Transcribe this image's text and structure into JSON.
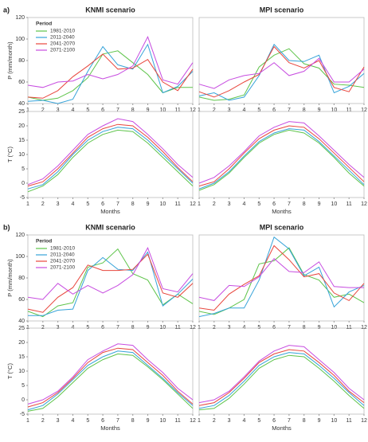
{
  "chart_data": [
    {
      "type": "line",
      "panel": "a)",
      "title": "KNMI scenario",
      "ylabel": "P (mm/month)",
      "x": [
        1,
        2,
        3,
        4,
        5,
        6,
        7,
        8,
        9,
        10,
        11,
        12
      ],
      "xlim": [
        1,
        12
      ],
      "xticks": [
        1,
        2,
        3,
        4,
        5,
        6,
        7,
        8,
        9,
        10,
        11,
        12
      ],
      "ylim": [
        40,
        120
      ],
      "yticks": [
        40,
        60,
        80,
        100,
        120
      ],
      "legend": "upper left",
      "legend_title": "Period",
      "series": [
        {
          "name": "1981-2010",
          "color": "#5ec44a",
          "values": [
            46,
            43,
            45,
            52,
            64,
            86,
            89,
            78,
            67,
            50,
            55,
            55
          ]
        },
        {
          "name": "2011-2040",
          "color": "#36a3d9",
          "values": [
            42,
            43,
            40,
            44,
            70,
            93,
            76,
            72,
            95,
            50,
            56,
            70
          ]
        },
        {
          "name": "2041-2070",
          "color": "#e8453c",
          "values": [
            46,
            45,
            52,
            65,
            75,
            86,
            72,
            73,
            81,
            60,
            52,
            72
          ]
        },
        {
          "name": "2071-2100",
          "color": "#c74ce0",
          "values": [
            57,
            55,
            60,
            61,
            67,
            63,
            67,
            75,
            102,
            62,
            58,
            78
          ]
        }
      ]
    },
    {
      "type": "line",
      "title": "MPI scenario",
      "x": [
        1,
        2,
        3,
        4,
        5,
        6,
        7,
        8,
        9,
        10,
        11,
        12
      ],
      "xlim": [
        1,
        12
      ],
      "xticks": [
        1,
        2,
        3,
        4,
        5,
        6,
        7,
        8,
        9,
        10,
        11,
        12
      ],
      "ylim": [
        40,
        120
      ],
      "series": [
        {
          "color": "#5ec44a",
          "values": [
            46,
            43,
            44,
            48,
            74,
            85,
            91,
            77,
            73,
            58,
            57,
            55
          ]
        },
        {
          "color": "#36a3d9",
          "values": [
            47,
            50,
            43,
            46,
            66,
            95,
            80,
            79,
            85,
            50,
            56,
            68
          ]
        },
        {
          "color": "#e8453c",
          "values": [
            51,
            46,
            52,
            60,
            67,
            93,
            78,
            73,
            80,
            55,
            51,
            74
          ]
        },
        {
          "color": "#c74ce0",
          "values": [
            58,
            54,
            62,
            66,
            68,
            78,
            66,
            70,
            82,
            60,
            60,
            72
          ]
        }
      ]
    },
    {
      "type": "line",
      "ylabel": "T (°C)",
      "xlabel": "Months",
      "x": [
        1,
        2,
        3,
        4,
        5,
        6,
        7,
        8,
        9,
        10,
        11,
        12
      ],
      "xlim": [
        1,
        12
      ],
      "xticks": [
        1,
        2,
        3,
        4,
        5,
        6,
        7,
        8,
        9,
        10,
        11,
        12
      ],
      "ylim": [
        -5,
        25
      ],
      "yticks": [
        -5,
        0,
        5,
        10,
        15,
        20,
        25
      ],
      "series": [
        {
          "color": "#5ec44a",
          "values": [
            -3,
            -1,
            3,
            9,
            14,
            17,
            18.5,
            18,
            14,
            9,
            4,
            -1
          ]
        },
        {
          "color": "#36a3d9",
          "values": [
            -2,
            -0.5,
            4,
            10,
            15,
            18,
            19.5,
            19,
            15,
            10,
            5,
            0
          ]
        },
        {
          "color": "#e8453c",
          "values": [
            -1,
            0.5,
            5,
            10.5,
            16,
            19,
            20.5,
            20,
            16,
            11,
            5.5,
            0.5
          ]
        },
        {
          "color": "#c74ce0",
          "values": [
            -0.5,
            1.5,
            6,
            11.5,
            17,
            20,
            22.5,
            21.5,
            17,
            12,
            6.5,
            2
          ]
        }
      ]
    },
    {
      "type": "line",
      "xlabel": "Months",
      "x": [
        1,
        2,
        3,
        4,
        5,
        6,
        7,
        8,
        9,
        10,
        11,
        12
      ],
      "xlim": [
        1,
        12
      ],
      "xticks": [
        1,
        2,
        3,
        4,
        5,
        6,
        7,
        8,
        9,
        10,
        11,
        12
      ],
      "ylim": [
        -5,
        25
      ],
      "series": [
        {
          "color": "#5ec44a",
          "values": [
            -2.5,
            -0.5,
            3.5,
            9,
            14,
            17,
            18.5,
            17.5,
            14,
            9,
            3.5,
            -1
          ]
        },
        {
          "color": "#36a3d9",
          "values": [
            -2,
            0,
            4,
            9.5,
            14.5,
            17.5,
            19,
            18.5,
            14.5,
            9.5,
            4.5,
            -0.5
          ]
        },
        {
          "color": "#e8453c",
          "values": [
            -1,
            0.5,
            5,
            10.5,
            15.5,
            18.5,
            20,
            19.5,
            15.5,
            10.5,
            5.5,
            0.5
          ]
        },
        {
          "color": "#c74ce0",
          "values": [
            0,
            2,
            6,
            11,
            16.5,
            19.5,
            21.5,
            21,
            16.5,
            11.5,
            6.5,
            2
          ]
        }
      ]
    },
    {
      "type": "line",
      "panel": "b)",
      "title": "KNMI scenario",
      "ylabel": "P (mm/month)",
      "x": [
        1,
        2,
        3,
        4,
        5,
        6,
        7,
        8,
        9,
        10,
        11,
        12
      ],
      "xlim": [
        1,
        12
      ],
      "xticks": [
        1,
        2,
        3,
        4,
        5,
        6,
        7,
        8,
        9,
        10,
        11,
        12
      ],
      "ylim": [
        40,
        120
      ],
      "yticks": [
        40,
        60,
        80,
        100,
        120
      ],
      "legend": "upper left",
      "legend_title": "Period",
      "series": [
        {
          "name": "1981-2010",
          "color": "#5ec44a",
          "values": [
            49,
            44,
            54,
            57,
            90,
            94,
            107,
            84,
            78,
            55,
            65,
            56
          ]
        },
        {
          "name": "2011-2040",
          "color": "#36a3d9",
          "values": [
            45,
            45,
            50,
            51,
            87,
            99,
            88,
            87,
            104,
            54,
            65,
            79
          ]
        },
        {
          "name": "2041-2070",
          "color": "#e8453c",
          "values": [
            51,
            48,
            62,
            71,
            92,
            87,
            87,
            88,
            102,
            66,
            62,
            75
          ]
        },
        {
          "name": "2071-2100",
          "color": "#c74ce0",
          "values": [
            62,
            60,
            75,
            65,
            73,
            66,
            73,
            83,
            108,
            70,
            67,
            84
          ]
        }
      ]
    },
    {
      "type": "line",
      "title": "MPI scenario",
      "x": [
        1,
        2,
        3,
        4,
        5,
        6,
        7,
        8,
        9,
        10,
        11,
        12
      ],
      "xlim": [
        1,
        12
      ],
      "xticks": [
        1,
        2,
        3,
        4,
        5,
        6,
        7,
        8,
        9,
        10,
        11,
        12
      ],
      "ylim": [
        40,
        120
      ],
      "series": [
        {
          "color": "#5ec44a",
          "values": [
            49,
            46,
            52,
            60,
            93,
            96,
            108,
            83,
            78,
            62,
            65,
            57
          ]
        },
        {
          "color": "#36a3d9",
          "values": [
            44,
            47,
            52,
            52,
            78,
            118,
            107,
            82,
            90,
            53,
            67,
            73
          ]
        },
        {
          "color": "#e8453c",
          "values": [
            52,
            50,
            65,
            74,
            82,
            110,
            97,
            81,
            84,
            66,
            59,
            75
          ]
        },
        {
          "color": "#c74ce0",
          "values": [
            62,
            59,
            73,
            72,
            81,
            98,
            86,
            85,
            95,
            72,
            71,
            71
          ]
        }
      ]
    },
    {
      "type": "line",
      "ylabel": "T (°C)",
      "xlabel": "Months",
      "x": [
        1,
        2,
        3,
        4,
        5,
        6,
        7,
        8,
        9,
        10,
        11,
        12
      ],
      "xlim": [
        1,
        12
      ],
      "xticks": [
        1,
        2,
        3,
        4,
        5,
        6,
        7,
        8,
        9,
        10,
        11,
        12
      ],
      "ylim": [
        -5,
        25
      ],
      "yticks": [
        -5,
        0,
        5,
        10,
        15,
        20,
        25
      ],
      "series": [
        {
          "color": "#5ec44a",
          "values": [
            -4,
            -3,
            1,
            6,
            11,
            14,
            16,
            15.5,
            11.5,
            7,
            2,
            -3
          ]
        },
        {
          "color": "#36a3d9",
          "values": [
            -3.5,
            -2,
            2,
            7,
            12,
            15,
            17,
            16.5,
            12,
            7.5,
            2.5,
            -2
          ]
        },
        {
          "color": "#e8453c",
          "values": [
            -2.5,
            -1,
            2.5,
            7.5,
            13,
            16.5,
            18,
            17.5,
            13,
            8.5,
            3,
            -1.5
          ]
        },
        {
          "color": "#c74ce0",
          "values": [
            -1.5,
            0,
            3,
            8,
            14,
            17,
            19.5,
            19,
            14,
            9.5,
            4,
            0
          ]
        }
      ]
    },
    {
      "type": "line",
      "xlabel": "Months",
      "x": [
        1,
        2,
        3,
        4,
        5,
        6,
        7,
        8,
        9,
        10,
        11,
        12
      ],
      "xlim": [
        1,
        12
      ],
      "xticks": [
        1,
        2,
        3,
        4,
        5,
        6,
        7,
        8,
        9,
        10,
        11,
        12
      ],
      "ylim": [
        -5,
        25
      ],
      "series": [
        {
          "color": "#5ec44a",
          "values": [
            -3.5,
            -3,
            0.5,
            5.5,
            11,
            14,
            15.5,
            15,
            11,
            6.5,
            1.5,
            -3
          ]
        },
        {
          "color": "#36a3d9",
          "values": [
            -3,
            -2,
            1.5,
            6.5,
            12,
            15,
            16.5,
            16,
            12,
            7.5,
            2.5,
            -2
          ]
        },
        {
          "color": "#e8453c",
          "values": [
            -2,
            -1,
            2.5,
            7.5,
            13,
            16,
            17.5,
            17,
            13,
            8.5,
            3,
            -1
          ]
        },
        {
          "color": "#c74ce0",
          "values": [
            -1,
            0,
            3,
            8,
            13.5,
            17,
            19,
            18.5,
            14,
            9.5,
            4,
            0
          ]
        }
      ]
    }
  ]
}
